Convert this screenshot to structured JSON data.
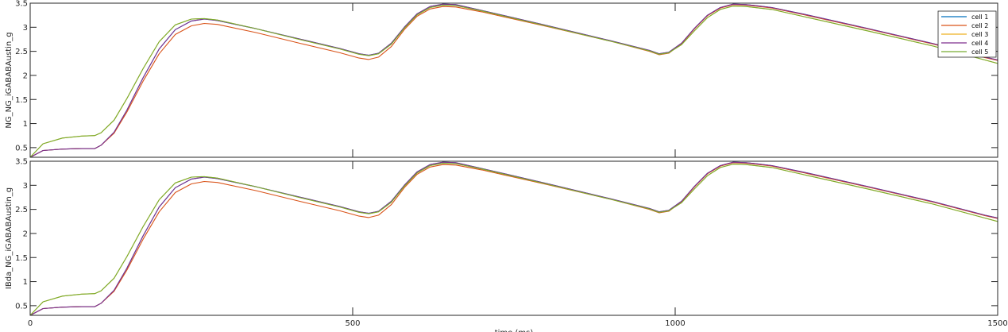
{
  "chart_data": [
    {
      "type": "line",
      "ylabel": "NG_NG_iGABABAustin_g",
      "xlabel": "",
      "xlim": [
        0,
        1500
      ],
      "ylim": [
        0.3,
        3.5
      ],
      "yticks": [
        0.5,
        1,
        1.5,
        2,
        2.5,
        3,
        3.5
      ],
      "yticklabels": [
        "0.5",
        "1",
        "1.5",
        "2",
        "2.5",
        "3",
        "3.5"
      ],
      "xticks": [
        0,
        500,
        1000,
        1500
      ],
      "xticklabels": [],
      "grid": false,
      "legend": "top-right",
      "series": [
        {
          "name": "cell 1",
          "color": "#0072BD",
          "x": [
            0,
            20,
            50,
            80,
            100,
            110,
            130,
            150,
            175,
            200,
            225,
            250,
            270,
            290,
            350,
            420,
            480,
            510,
            525,
            540,
            560,
            580,
            600,
            620,
            640,
            660,
            700,
            800,
            900,
            960,
            975,
            990,
            1010,
            1030,
            1050,
            1070,
            1090,
            1110,
            1130,
            1150,
            1200,
            1300,
            1400,
            1480,
            1500
          ],
          "y": [
            0.3,
            0.44,
            0.47,
            0.48,
            0.48,
            0.55,
            0.82,
            1.28,
            1.95,
            2.55,
            2.95,
            3.13,
            3.17,
            3.14,
            2.97,
            2.75,
            2.56,
            2.45,
            2.42,
            2.46,
            2.67,
            3.0,
            3.28,
            3.43,
            3.48,
            3.47,
            3.35,
            3.04,
            2.72,
            2.52,
            2.45,
            2.48,
            2.67,
            2.98,
            3.25,
            3.41,
            3.48,
            3.47,
            3.44,
            3.41,
            3.27,
            2.97,
            2.66,
            2.38,
            2.32
          ]
        },
        {
          "name": "cell 2",
          "color": "#D95319",
          "x": [
            0,
            20,
            50,
            80,
            100,
            110,
            130,
            150,
            175,
            200,
            225,
            250,
            270,
            290,
            350,
            420,
            480,
            510,
            525,
            540,
            560,
            580,
            600,
            620,
            640,
            660,
            700,
            800,
            900,
            960,
            975,
            990,
            1010,
            1030,
            1050,
            1070,
            1090,
            1110,
            1130,
            1150,
            1200,
            1300,
            1400,
            1480,
            1500
          ],
          "y": [
            0.3,
            0.44,
            0.47,
            0.48,
            0.48,
            0.55,
            0.8,
            1.24,
            1.88,
            2.45,
            2.85,
            3.03,
            3.08,
            3.06,
            2.89,
            2.66,
            2.47,
            2.36,
            2.33,
            2.38,
            2.6,
            2.95,
            3.23,
            3.38,
            3.43,
            3.42,
            3.32,
            3.02,
            2.71,
            2.5,
            2.43,
            2.46,
            2.66,
            2.97,
            3.24,
            3.4,
            3.47,
            3.46,
            3.43,
            3.4,
            3.26,
            2.96,
            2.65,
            2.37,
            2.31
          ]
        },
        {
          "name": "cell 3",
          "color": "#EDB120",
          "x": [
            0,
            20,
            50,
            80,
            100,
            110,
            130,
            150,
            175,
            200,
            225,
            250,
            270,
            290,
            350,
            420,
            480,
            510,
            525,
            540,
            560,
            580,
            600,
            620,
            640,
            660,
            700,
            800,
            900,
            960,
            975,
            990,
            1010,
            1030,
            1050,
            1070,
            1090,
            1110,
            1130,
            1150,
            1200,
            1300,
            1400,
            1480,
            1500
          ],
          "y": [
            0.3,
            0.58,
            0.7,
            0.74,
            0.75,
            0.81,
            1.07,
            1.52,
            2.14,
            2.7,
            3.05,
            3.17,
            3.18,
            3.15,
            2.97,
            2.74,
            2.55,
            2.44,
            2.41,
            2.45,
            2.65,
            2.98,
            3.26,
            3.41,
            3.46,
            3.45,
            3.34,
            3.03,
            2.71,
            2.51,
            2.44,
            2.47,
            2.64,
            2.93,
            3.2,
            3.37,
            3.44,
            3.43,
            3.4,
            3.37,
            3.22,
            2.92,
            2.61,
            2.32,
            2.25
          ]
        },
        {
          "name": "cell 4",
          "color": "#7E2F8E",
          "x": [
            0,
            20,
            50,
            80,
            100,
            110,
            130,
            150,
            175,
            200,
            225,
            250,
            270,
            290,
            350,
            420,
            480,
            510,
            525,
            540,
            560,
            580,
            600,
            620,
            640,
            660,
            700,
            800,
            900,
            960,
            975,
            990,
            1010,
            1030,
            1050,
            1070,
            1090,
            1110,
            1130,
            1150,
            1200,
            1300,
            1400,
            1480,
            1500
          ],
          "y": [
            0.3,
            0.44,
            0.47,
            0.48,
            0.48,
            0.55,
            0.82,
            1.28,
            1.95,
            2.55,
            2.95,
            3.13,
            3.17,
            3.14,
            2.97,
            2.75,
            2.56,
            2.45,
            2.42,
            2.46,
            2.67,
            3.0,
            3.28,
            3.43,
            3.48,
            3.47,
            3.35,
            3.04,
            2.72,
            2.52,
            2.45,
            2.48,
            2.67,
            2.98,
            3.25,
            3.41,
            3.48,
            3.47,
            3.44,
            3.41,
            3.27,
            2.97,
            2.66,
            2.38,
            2.32
          ]
        },
        {
          "name": "cell 5",
          "color": "#77AC30",
          "x": [
            0,
            20,
            50,
            80,
            100,
            110,
            130,
            150,
            175,
            200,
            225,
            250,
            270,
            290,
            350,
            420,
            480,
            510,
            525,
            540,
            560,
            580,
            600,
            620,
            640,
            660,
            700,
            800,
            900,
            960,
            975,
            990,
            1010,
            1030,
            1050,
            1070,
            1090,
            1110,
            1130,
            1150,
            1200,
            1300,
            1400,
            1480,
            1500
          ],
          "y": [
            0.3,
            0.58,
            0.7,
            0.74,
            0.75,
            0.81,
            1.07,
            1.52,
            2.14,
            2.7,
            3.05,
            3.17,
            3.18,
            3.15,
            2.97,
            2.74,
            2.55,
            2.44,
            2.41,
            2.45,
            2.65,
            2.98,
            3.26,
            3.41,
            3.46,
            3.45,
            3.34,
            3.03,
            2.71,
            2.51,
            2.44,
            2.47,
            2.64,
            2.93,
            3.2,
            3.37,
            3.44,
            3.43,
            3.4,
            3.37,
            3.22,
            2.92,
            2.61,
            2.32,
            2.25
          ]
        }
      ]
    },
    {
      "type": "line",
      "ylabel": "IBda_NG_iGABABAustin_g",
      "xlabel": "time (ms)",
      "xlim": [
        0,
        1500
      ],
      "ylim": [
        0.3,
        3.5
      ],
      "yticks": [
        0.5,
        1,
        1.5,
        2,
        2.5,
        3,
        3.5
      ],
      "yticklabels": [
        "0.5",
        "1",
        "1.5",
        "2",
        "2.5",
        "3",
        "3.5"
      ],
      "xticks": [
        0,
        500,
        1000,
        1500
      ],
      "xticklabels": [
        "0",
        "500",
        "1000",
        "1500"
      ],
      "grid": false,
      "legend": "none",
      "series": [
        {
          "color": "#0072BD",
          "x": [
            0,
            20,
            50,
            80,
            100,
            110,
            130,
            150,
            175,
            200,
            225,
            250,
            270,
            290,
            350,
            420,
            480,
            510,
            525,
            540,
            560,
            580,
            600,
            620,
            640,
            660,
            700,
            800,
            900,
            960,
            975,
            990,
            1010,
            1030,
            1050,
            1070,
            1090,
            1110,
            1130,
            1150,
            1200,
            1300,
            1400,
            1480,
            1500
          ],
          "y": [
            0.3,
            0.44,
            0.47,
            0.48,
            0.48,
            0.55,
            0.82,
            1.28,
            1.95,
            2.55,
            2.95,
            3.13,
            3.17,
            3.14,
            2.97,
            2.75,
            2.56,
            2.45,
            2.42,
            2.46,
            2.67,
            3.0,
            3.28,
            3.43,
            3.48,
            3.47,
            3.35,
            3.04,
            2.72,
            2.52,
            2.45,
            2.48,
            2.67,
            2.98,
            3.25,
            3.41,
            3.48,
            3.47,
            3.44,
            3.41,
            3.27,
            2.97,
            2.66,
            2.38,
            2.32
          ]
        },
        {
          "color": "#D95319",
          "x": [
            0,
            20,
            50,
            80,
            100,
            110,
            130,
            150,
            175,
            200,
            225,
            250,
            270,
            290,
            350,
            420,
            480,
            510,
            525,
            540,
            560,
            580,
            600,
            620,
            640,
            660,
            700,
            800,
            900,
            960,
            975,
            990,
            1010,
            1030,
            1050,
            1070,
            1090,
            1110,
            1130,
            1150,
            1200,
            1300,
            1400,
            1480,
            1500
          ],
          "y": [
            0.3,
            0.44,
            0.47,
            0.48,
            0.48,
            0.55,
            0.8,
            1.24,
            1.88,
            2.45,
            2.85,
            3.03,
            3.08,
            3.06,
            2.89,
            2.66,
            2.47,
            2.36,
            2.33,
            2.38,
            2.6,
            2.95,
            3.23,
            3.38,
            3.43,
            3.42,
            3.32,
            3.02,
            2.71,
            2.5,
            2.43,
            2.46,
            2.66,
            2.97,
            3.24,
            3.4,
            3.47,
            3.46,
            3.43,
            3.4,
            3.26,
            2.96,
            2.65,
            2.37,
            2.31
          ]
        },
        {
          "color": "#EDB120",
          "x": [
            0,
            20,
            50,
            80,
            100,
            110,
            130,
            150,
            175,
            200,
            225,
            250,
            270,
            290,
            350,
            420,
            480,
            510,
            525,
            540,
            560,
            580,
            600,
            620,
            640,
            660,
            700,
            800,
            900,
            960,
            975,
            990,
            1010,
            1030,
            1050,
            1070,
            1090,
            1110,
            1130,
            1150,
            1200,
            1300,
            1400,
            1480,
            1500
          ],
          "y": [
            0.3,
            0.58,
            0.7,
            0.74,
            0.75,
            0.81,
            1.07,
            1.52,
            2.14,
            2.7,
            3.05,
            3.17,
            3.18,
            3.15,
            2.97,
            2.74,
            2.55,
            2.44,
            2.41,
            2.45,
            2.65,
            2.98,
            3.26,
            3.41,
            3.46,
            3.45,
            3.34,
            3.03,
            2.71,
            2.51,
            2.44,
            2.47,
            2.64,
            2.93,
            3.2,
            3.37,
            3.44,
            3.43,
            3.4,
            3.37,
            3.22,
            2.92,
            2.61,
            2.32,
            2.25
          ]
        },
        {
          "color": "#7E2F8E",
          "x": [
            0,
            20,
            50,
            80,
            100,
            110,
            130,
            150,
            175,
            200,
            225,
            250,
            270,
            290,
            350,
            420,
            480,
            510,
            525,
            540,
            560,
            580,
            600,
            620,
            640,
            660,
            700,
            800,
            900,
            960,
            975,
            990,
            1010,
            1030,
            1050,
            1070,
            1090,
            1110,
            1130,
            1150,
            1200,
            1300,
            1400,
            1480,
            1500
          ],
          "y": [
            0.3,
            0.44,
            0.47,
            0.48,
            0.48,
            0.55,
            0.82,
            1.28,
            1.95,
            2.55,
            2.95,
            3.13,
            3.17,
            3.14,
            2.97,
            2.75,
            2.56,
            2.45,
            2.42,
            2.46,
            2.67,
            3.0,
            3.28,
            3.43,
            3.48,
            3.47,
            3.35,
            3.04,
            2.72,
            2.52,
            2.45,
            2.48,
            2.67,
            2.98,
            3.25,
            3.41,
            3.48,
            3.47,
            3.44,
            3.41,
            3.27,
            2.97,
            2.66,
            2.38,
            2.32
          ]
        },
        {
          "color": "#77AC30",
          "x": [
            0,
            20,
            50,
            80,
            100,
            110,
            130,
            150,
            175,
            200,
            225,
            250,
            270,
            290,
            350,
            420,
            480,
            510,
            525,
            540,
            560,
            580,
            600,
            620,
            640,
            660,
            700,
            800,
            900,
            960,
            975,
            990,
            1010,
            1030,
            1050,
            1070,
            1090,
            1110,
            1130,
            1150,
            1200,
            1300,
            1400,
            1480,
            1500
          ],
          "y": [
            0.3,
            0.58,
            0.7,
            0.74,
            0.75,
            0.81,
            1.07,
            1.52,
            2.14,
            2.7,
            3.05,
            3.17,
            3.18,
            3.15,
            2.97,
            2.74,
            2.55,
            2.44,
            2.41,
            2.45,
            2.65,
            2.98,
            3.26,
            3.41,
            3.46,
            3.45,
            3.34,
            3.03,
            2.71,
            2.51,
            2.44,
            2.47,
            2.64,
            2.93,
            3.2,
            3.37,
            3.44,
            3.43,
            3.4,
            3.37,
            3.22,
            2.92,
            2.61,
            2.32,
            2.25
          ]
        }
      ]
    }
  ]
}
